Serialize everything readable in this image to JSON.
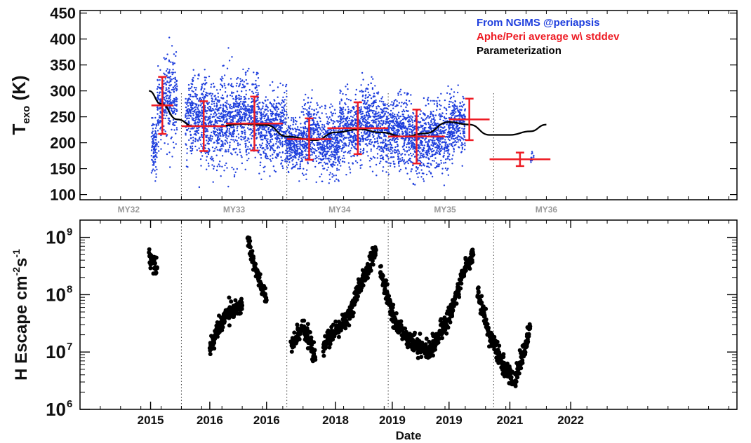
{
  "chart_data": [
    {
      "type": "scatter",
      "panel": "top",
      "ylabel_main": "T",
      "ylabel_sub": "exo",
      "ylabel_unit": " (K)",
      "ylim": [
        90,
        455
      ],
      "xlim": [
        2014.0,
        2022.1
      ],
      "yticks": [
        100,
        150,
        200,
        250,
        300,
        350,
        400,
        450
      ],
      "grid": false,
      "legend_placement": "top-right",
      "legend": [
        {
          "label": "From NGIMS @periapsis",
          "color": "#1f3fdd"
        },
        {
          "label": "Aphe/Peri average w\\ stddev",
          "color": "#ee1c24"
        },
        {
          "label": "Parameterization",
          "color": "#000000"
        }
      ],
      "martian_year_boundaries": [
        2015.25,
        2016.55,
        2017.8,
        2019.1
      ],
      "martian_year_labels": [
        {
          "label": "MY32",
          "x": 2014.6
        },
        {
          "label": "MY33",
          "x": 2015.9
        },
        {
          "label": "MY34",
          "x": 2017.2
        },
        {
          "label": "MY35",
          "x": 2018.5
        },
        {
          "label": "MY36",
          "x": 2019.75
        }
      ],
      "ngims_clusters": [
        {
          "x0": 2014.88,
          "x1": 2014.95,
          "mean": 195,
          "sd": 35
        },
        {
          "x0": 2014.95,
          "x1": 2015.05,
          "mean": 270,
          "sd": 45
        },
        {
          "x0": 2015.05,
          "x1": 2015.2,
          "mean": 280,
          "sd": 50
        },
        {
          "x0": 2015.3,
          "x1": 2015.55,
          "mean": 250,
          "sd": 45
        },
        {
          "x0": 2015.55,
          "x1": 2015.75,
          "mean": 230,
          "sd": 50
        },
        {
          "x0": 2015.75,
          "x1": 2015.95,
          "mean": 245,
          "sd": 55
        },
        {
          "x0": 2015.95,
          "x1": 2016.2,
          "mean": 250,
          "sd": 45
        },
        {
          "x0": 2016.2,
          "x1": 2016.35,
          "mean": 225,
          "sd": 45
        },
        {
          "x0": 2016.35,
          "x1": 2016.55,
          "mean": 230,
          "sd": 40
        },
        {
          "x0": 2016.55,
          "x1": 2016.75,
          "mean": 195,
          "sd": 30
        },
        {
          "x0": 2016.75,
          "x1": 2016.95,
          "mean": 215,
          "sd": 40
        },
        {
          "x0": 2016.95,
          "x1": 2017.2,
          "mean": 195,
          "sd": 35
        },
        {
          "x0": 2017.2,
          "x1": 2017.45,
          "mean": 225,
          "sd": 40
        },
        {
          "x0": 2017.45,
          "x1": 2017.65,
          "mean": 240,
          "sd": 45
        },
        {
          "x0": 2017.65,
          "x1": 2017.85,
          "mean": 225,
          "sd": 40
        },
        {
          "x0": 2017.85,
          "x1": 2018.05,
          "mean": 220,
          "sd": 40
        },
        {
          "x0": 2018.05,
          "x1": 2018.3,
          "mean": 205,
          "sd": 40
        },
        {
          "x0": 2018.3,
          "x1": 2018.55,
          "mean": 210,
          "sd": 40
        },
        {
          "x0": 2018.55,
          "x1": 2018.75,
          "mean": 235,
          "sd": 35
        },
        {
          "x0": 2019.55,
          "x1": 2019.6,
          "mean": 170,
          "sd": 8
        }
      ],
      "averages": [
        {
          "x0": 2014.88,
          "x1": 2015.15,
          "y": 272,
          "sd": 55
        },
        {
          "x0": 2015.25,
          "x1": 2015.8,
          "y": 232,
          "sd": 48
        },
        {
          "x0": 2015.8,
          "x1": 2016.5,
          "y": 237,
          "sd": 52
        },
        {
          "x0": 2016.55,
          "x1": 2017.1,
          "y": 207,
          "sd": 40
        },
        {
          "x0": 2017.05,
          "x1": 2017.8,
          "y": 228,
          "sd": 50
        },
        {
          "x0": 2017.8,
          "x1": 2018.5,
          "y": 212,
          "sd": 52
        },
        {
          "x0": 2018.55,
          "x1": 2019.05,
          "y": 245,
          "sd": 40
        },
        {
          "x0": 2019.05,
          "x1": 2019.8,
          "y": 168,
          "sd": 13
        }
      ],
      "parameterization": {
        "x": [
          2014.85,
          2015.0,
          2015.2,
          2015.4,
          2015.7,
          2016.0,
          2016.3,
          2016.55,
          2016.9,
          2017.15,
          2017.45,
          2017.7,
          2018.0,
          2018.25,
          2018.55,
          2018.8,
          2019.05,
          2019.3,
          2019.55,
          2019.75
        ],
        "y": [
          300,
          275,
          245,
          232,
          232,
          236,
          234,
          212,
          205,
          220,
          226,
          220,
          212,
          218,
          240,
          235,
          215,
          215,
          222,
          235
        ]
      }
    },
    {
      "type": "scatter",
      "panel": "bottom",
      "ylabel": "H Escape cm",
      "ylabel_exp1": "-2",
      "ylabel_mid": "s",
      "ylabel_exp2": "-1",
      "yscale": "log",
      "ylim": [
        1000000,
        2000000000
      ],
      "xlabel": "Date",
      "xlim": [
        2014.0,
        2022.1
      ],
      "xtick_labels": [
        {
          "label": "2015",
          "x": 2014.87
        },
        {
          "label": "2016",
          "x": 2015.6
        },
        {
          "label": "2016",
          "x": 2016.3
        },
        {
          "label": "2018",
          "x": 2017.15
        },
        {
          "label": "2019",
          "x": 2017.85
        },
        {
          "label": "2019",
          "x": 2018.55
        },
        {
          "label": "2021",
          "x": 2019.3
        },
        {
          "label": "2022",
          "x": 2020.05
        }
      ],
      "yticks": [
        {
          "value": 1000000,
          "label": "10",
          "exp": "6"
        },
        {
          "value": 10000000,
          "label": "10",
          "exp": "7"
        },
        {
          "value": 100000000,
          "label": "10",
          "exp": "8"
        },
        {
          "value": 1000000000,
          "label": "10",
          "exp": "9"
        }
      ],
      "grid": false,
      "martian_year_boundaries": [
        2015.25,
        2016.55,
        2017.8,
        2019.1
      ],
      "escape_segments": [
        {
          "x": [
            2014.85,
            2014.9,
            2014.95
          ],
          "y": [
            500000000,
            380000000,
            290000000
          ]
        },
        {
          "x": [
            2015.6,
            2015.7,
            2015.8,
            2016.0
          ],
          "y": [
            11000000,
            25000000,
            45000000,
            65000000
          ]
        },
        {
          "x": [
            2016.07,
            2016.13,
            2016.2,
            2016.3
          ],
          "y": [
            1000000000,
            400000000,
            180000000,
            80000000
          ]
        },
        {
          "x": [
            2016.6,
            2016.75,
            2016.9
          ],
          "y": [
            12000000,
            30000000,
            8000000
          ]
        },
        {
          "x": [
            2017.0,
            2017.3,
            2017.5,
            2017.65
          ],
          "y": [
            13000000,
            40000000,
            200000000,
            600000000
          ]
        },
        {
          "x": [
            2017.7,
            2017.9,
            2018.1,
            2018.3,
            2018.55,
            2018.75,
            2018.85
          ],
          "y": [
            250000000,
            30000000,
            15000000,
            10000000,
            40000000,
            300000000,
            500000000
          ]
        },
        {
          "x": [
            2018.9,
            2019.05,
            2019.15,
            2019.25,
            2019.35
          ],
          "y": [
            120000000,
            20000000,
            10000000,
            5000000,
            3000000
          ]
        },
        {
          "x": [
            2019.35,
            2019.45,
            2019.55
          ],
          "y": [
            3000000,
            8000000,
            28000000
          ]
        }
      ]
    }
  ]
}
